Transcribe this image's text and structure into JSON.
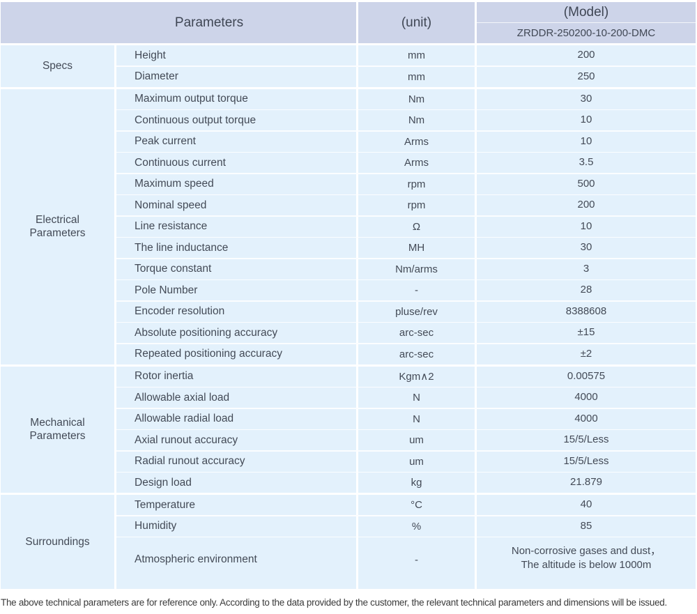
{
  "header": {
    "parameters_label": "Parameters",
    "unit_label": "(unit)",
    "model_label": "(Model)",
    "model_value": "ZRDDR-250200-10-200-DMC"
  },
  "sections": [
    {
      "label": "Specs",
      "rows": [
        {
          "name": "Height",
          "unit": "mm",
          "value": "200"
        },
        {
          "name": "Diameter",
          "unit": "mm",
          "value": "250"
        }
      ]
    },
    {
      "label": "Electrical\nParameters",
      "rows": [
        {
          "name": "Maximum output torque",
          "unit": "Nm",
          "value": "30"
        },
        {
          "name": "Continuous output torque",
          "unit": "Nm",
          "value": "10"
        },
        {
          "name": "Peak current",
          "unit": "Arms",
          "value": "10"
        },
        {
          "name": "Continuous current",
          "unit": "Arms",
          "value": "3.5"
        },
        {
          "name": "Maximum speed",
          "unit": "rpm",
          "value": "500"
        },
        {
          "name": "Nominal speed",
          "unit": "rpm",
          "value": "200"
        },
        {
          "name": "Line resistance",
          "unit": "Ω",
          "value": "10"
        },
        {
          "name": "The line inductance",
          "unit": "MH",
          "value": "30"
        },
        {
          "name": "Torque constant",
          "unit": "Nm/arms",
          "value": "3"
        },
        {
          "name": "Pole Number",
          "unit": "-",
          "value": "28"
        },
        {
          "name": "Encoder resolution",
          "unit": "pluse/rev",
          "value": "8388608"
        },
        {
          "name": "Absolute positioning accuracy",
          "unit": "arc-sec",
          "value": "±15"
        },
        {
          "name": "Repeated positioning accuracy",
          "unit": "arc-sec",
          "value": "±2"
        }
      ]
    },
    {
      "label": "Mechanical\nParameters",
      "rows": [
        {
          "name": "Rotor inertia",
          "unit": "Kgm∧2",
          "value": "0.00575"
        },
        {
          "name": "Allowable axial load",
          "unit": "N",
          "value": "4000"
        },
        {
          "name": "Allowable radial load",
          "unit": "N",
          "value": "4000"
        },
        {
          "name": "Axial runout accuracy",
          "unit": "um",
          "value": "15/5/Less"
        },
        {
          "name": "Radial runout accuracy",
          "unit": "um",
          "value": "15/5/Less"
        },
        {
          "name": "Design load",
          "unit": "kg",
          "value": "21.879"
        }
      ]
    },
    {
      "label": "Surroundings",
      "rows": [
        {
          "name": "Temperature",
          "unit": "°C",
          "value": "40"
        },
        {
          "name": "Humidity",
          "unit": "%",
          "value": "85"
        },
        {
          "name": "Atmospheric environment",
          "unit": "-",
          "value": "Non-corrosive gases and dust，\nThe altitude is below 1000m",
          "tall": true
        }
      ]
    }
  ],
  "footer": {
    "note": "The above technical parameters are for reference only. According to the data provided by the customer, the relevant technical parameters and dimensions will be issued."
  },
  "colors": {
    "header_bg": "#cdd4e9",
    "cell_bg": "#e3f1fc",
    "text": "#434a56"
  }
}
